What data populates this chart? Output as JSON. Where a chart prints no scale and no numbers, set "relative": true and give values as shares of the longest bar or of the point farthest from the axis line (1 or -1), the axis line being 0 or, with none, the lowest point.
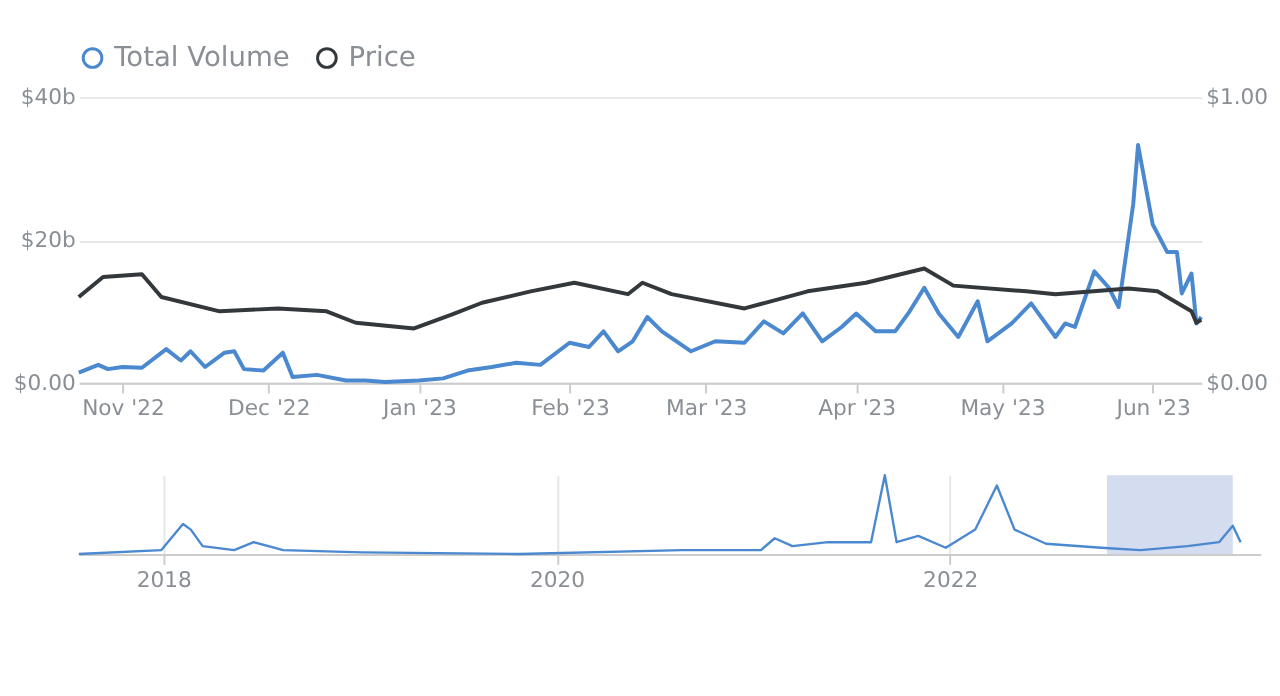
{
  "chart_data": [
    {
      "type": "line",
      "legend": "top left",
      "grid": "y",
      "marker": "none",
      "line_style": "solid",
      "xlim": [
        "2022-10-23",
        "2023-06-11"
      ],
      "xticks": [
        {
          "value": "2022-11-01",
          "label": "Nov '22"
        },
        {
          "value": "2022-12-01",
          "label": "Dec '22"
        },
        {
          "value": "2023-01-01",
          "label": "Jan '23"
        },
        {
          "value": "2023-02-01",
          "label": "Feb '23"
        },
        {
          "value": "2023-03-01",
          "label": "Mar '23"
        },
        {
          "value": "2023-04-01",
          "label": "Apr '23"
        },
        {
          "value": "2023-05-01",
          "label": "May '23"
        },
        {
          "value": "2023-06-01",
          "label": "Jun '23"
        }
      ],
      "ylim": [
        0,
        40
      ],
      "yticks": [
        {
          "value": 0,
          "label": "$0.00"
        },
        {
          "value": 20,
          "label": "$20b"
        },
        {
          "value": 40,
          "label": "$40b"
        }
      ],
      "y2lim": [
        0,
        1
      ],
      "y2ticks": [
        {
          "value": 0,
          "label": "$0.00"
        },
        {
          "value": 1,
          "label": "$1.00"
        }
      ],
      "series": [
        {
          "name": "Total Volume",
          "color": "#4a88d0",
          "x": [
            "2022-10-23",
            "2022-10-27",
            "2022-10-29",
            "2022-11-01",
            "2022-11-05",
            "2022-11-10",
            "2022-11-13",
            "2022-11-15",
            "2022-11-18",
            "2022-11-22",
            "2022-11-24",
            "2022-11-26",
            "2022-11-30",
            "2022-12-04",
            "2022-12-06",
            "2022-12-11",
            "2022-12-17",
            "2022-12-21",
            "2022-12-25",
            "2023-01-01",
            "2023-01-06",
            "2023-01-11",
            "2023-01-16",
            "2023-01-21",
            "2023-01-26",
            "2023-02-01",
            "2023-02-05",
            "2023-02-08",
            "2023-02-11",
            "2023-02-14",
            "2023-02-17",
            "2023-02-20",
            "2023-02-26",
            "2023-03-03",
            "2023-03-09",
            "2023-03-13",
            "2023-03-17",
            "2023-03-21",
            "2023-03-25",
            "2023-03-29",
            "2023-04-01",
            "2023-04-05",
            "2023-04-09",
            "2023-04-12",
            "2023-04-15",
            "2023-04-18",
            "2023-04-22",
            "2023-04-26",
            "2023-04-28",
            "2023-05-03",
            "2023-05-07",
            "2023-05-12",
            "2023-05-14",
            "2023-05-16",
            "2023-05-20",
            "2023-05-23",
            "2023-05-25",
            "2023-05-28",
            "2023-05-29",
            "2023-06-01",
            "2023-06-04",
            "2023-06-06",
            "2023-06-07",
            "2023-06-09",
            "2023-06-10",
            "2023-06-11"
          ],
          "values": [
            1.4,
            2.5,
            1.9,
            2.2,
            2.1,
            4.7,
            3.1,
            4.4,
            2.2,
            4.2,
            4.4,
            1.9,
            1.7,
            4.2,
            0.8,
            1.1,
            0.3,
            0.3,
            0.1,
            0.3,
            0.6,
            1.7,
            2.2,
            2.8,
            2.5,
            5.6,
            5.0,
            7.2,
            4.4,
            5.8,
            9.2,
            7.2,
            4.4,
            5.8,
            5.6,
            8.6,
            6.9,
            9.7,
            5.8,
            7.8,
            9.7,
            7.2,
            7.2,
            10.0,
            13.3,
            9.7,
            6.4,
            11.4,
            5.8,
            8.3,
            11.1,
            6.4,
            8.3,
            7.8,
            15.6,
            13.3,
            10.6,
            25.0,
            33.3,
            22.2,
            18.3,
            18.3,
            12.5,
            15.3,
            8.3,
            9.2
          ]
        },
        {
          "name": "Price",
          "color": "#33383d",
          "axis": "y2",
          "x": [
            "2022-10-23",
            "2022-10-28",
            "2022-11-05",
            "2022-11-09",
            "2022-11-21",
            "2022-12-03",
            "2022-12-13",
            "2022-12-19",
            "2022-12-31",
            "2023-01-08",
            "2023-01-14",
            "2023-01-24",
            "2023-02-02",
            "2023-02-13",
            "2023-02-16",
            "2023-02-22",
            "2023-03-09",
            "2023-03-22",
            "2023-04-03",
            "2023-04-15",
            "2023-04-21",
            "2023-05-06",
            "2023-05-12",
            "2023-05-27",
            "2023-06-02",
            "2023-06-09",
            "2023-06-10",
            "2023-06-11"
          ],
          "values": [
            0.3,
            0.37,
            0.38,
            0.3,
            0.25,
            0.26,
            0.25,
            0.21,
            0.19,
            0.24,
            0.28,
            0.32,
            0.35,
            0.31,
            0.35,
            0.31,
            0.26,
            0.32,
            0.35,
            0.4,
            0.34,
            0.32,
            0.31,
            0.33,
            0.32,
            0.25,
            0.21,
            0.22
          ]
        }
      ]
    },
    {
      "type": "line",
      "relative": true,
      "grid": "x",
      "marker": "none",
      "line_style": "solid",
      "legend": false,
      "xlim": [
        2017.57,
        2023.58
      ],
      "xticks": [
        2018,
        2020,
        2022
      ],
      "bands": [
        {
          "axis": "x",
          "from": 2022.8,
          "to": 2023.44,
          "color": "#c9d4ec"
        }
      ],
      "series": [
        {
          "color": "#4a88d0",
          "x": [
            2017.57,
            2017.99,
            2018.1,
            2018.14,
            2018.2,
            2018.36,
            2018.46,
            2018.61,
            2019.01,
            2019.81,
            2020.64,
            2021.04,
            2021.11,
            2021.2,
            2021.38,
            2021.6,
            2021.67,
            2021.73,
            2021.84,
            2021.98,
            2022.13,
            2022.24,
            2022.33,
            2022.49,
            2022.77,
            2022.97,
            2023.21,
            2023.37,
            2023.44,
            2023.48
          ],
          "values": [
            0,
            0.05,
            0.38,
            0.31,
            0.1,
            0.05,
            0.15,
            0.05,
            0.02,
            0,
            0.05,
            0.05,
            0.2,
            0.1,
            0.15,
            0.15,
            1.0,
            0.15,
            0.23,
            0.08,
            0.31,
            0.87,
            0.31,
            0.13,
            0.08,
            0.05,
            0.1,
            0.15,
            0.36,
            0.15
          ]
        }
      ]
    }
  ]
}
